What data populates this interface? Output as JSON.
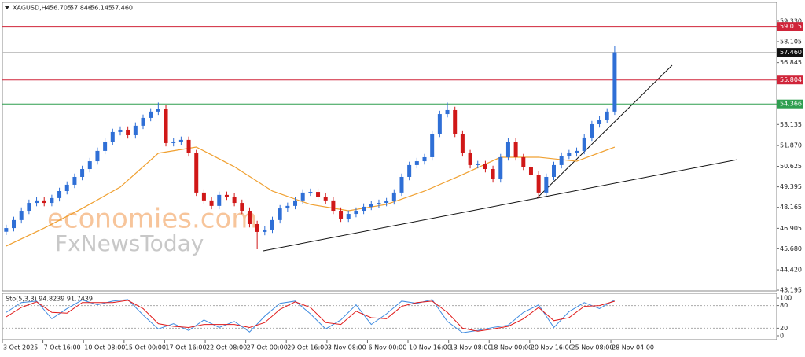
{
  "header": {
    "symbol": "XAGUSD,H4",
    "ohlc": [
      "56.705",
      "57.846",
      "56.145",
      "57.460"
    ]
  },
  "watermark": [
    "economies.com",
    "FxNewsToday"
  ],
  "chart_data": [
    {
      "type": "candlestick",
      "x": [
        0,
        1,
        2,
        3,
        4,
        5,
        6,
        7,
        8,
        9,
        10,
        11,
        12,
        13,
        14,
        15,
        16,
        17,
        18,
        19,
        20,
        21,
        22,
        23,
        24,
        25,
        26,
        27,
        28,
        29,
        30,
        31,
        32,
        33,
        34,
        35,
        36,
        37,
        38,
        39,
        40,
        41,
        42,
        43,
        44,
        45,
        46,
        47,
        48,
        49,
        50,
        51,
        52,
        53,
        54,
        55,
        56,
        57,
        58,
        59,
        60,
        61,
        62,
        63,
        64,
        65,
        66,
        67,
        68,
        69,
        70,
        71,
        72,
        73,
        74,
        75,
        76,
        77,
        78,
        79,
        80
      ],
      "open": [
        46.7,
        46.92,
        47.4,
        47.96,
        48.43,
        48.58,
        48.43,
        48.72,
        49.14,
        49.52,
        49.99,
        50.46,
        50.93,
        51.55,
        52.11,
        52.68,
        52.82,
        52.49,
        53.06,
        53.53,
        53.91,
        54.09,
        52.02,
        52.1,
        52.21,
        51.41,
        49.05,
        48.58,
        48.25,
        48.91,
        48.81,
        48.43,
        47.96,
        47.16,
        46.69,
        46.83,
        47.4,
        48.1,
        48.25,
        48.58,
        49.05,
        49.09,
        48.81,
        48.58,
        47.96,
        47.49,
        47.77,
        47.96,
        48.2,
        48.34,
        48.43,
        48.53,
        49.05,
        49.99,
        50.7,
        50.93,
        51.17,
        52.58,
        53.76,
        54.0,
        52.58,
        51.41,
        50.7,
        50.75,
        50.46,
        49.85,
        51.17,
        52.11,
        51.17,
        50.6,
        50.13,
        49.05,
        49.99,
        50.7,
        51.26,
        51.41,
        51.55,
        52.35,
        53.15,
        53.43,
        53.91
      ],
      "high": [
        47.12,
        47.6,
        48.16,
        48.63,
        48.78,
        48.78,
        48.92,
        49.34,
        49.72,
        50.19,
        50.66,
        51.13,
        51.75,
        52.31,
        52.88,
        53.02,
        53.02,
        53.26,
        53.73,
        54.11,
        54.45,
        54.29,
        52.3,
        52.41,
        52.41,
        51.61,
        49.25,
        48.78,
        49.11,
        49.11,
        49.01,
        48.63,
        48.16,
        47.36,
        47.03,
        47.6,
        48.3,
        48.45,
        48.78,
        49.25,
        49.29,
        49.29,
        49.01,
        48.78,
        48.16,
        47.97,
        48.16,
        48.4,
        48.54,
        48.63,
        48.73,
        49.25,
        50.19,
        50.9,
        51.13,
        51.37,
        52.78,
        53.96,
        54.45,
        54.2,
        52.78,
        51.61,
        50.95,
        50.95,
        50.66,
        51.37,
        52.31,
        52.31,
        51.37,
        50.8,
        50.33,
        50.19,
        50.9,
        51.46,
        51.61,
        51.75,
        52.55,
        53.35,
        53.63,
        54.11,
        57.85
      ],
      "low": [
        46.5,
        46.72,
        47.2,
        47.76,
        48.23,
        48.23,
        48.23,
        48.52,
        48.94,
        49.32,
        49.79,
        50.26,
        50.73,
        51.35,
        51.91,
        52.48,
        52.29,
        52.29,
        52.86,
        53.33,
        53.71,
        51.82,
        51.82,
        51.9,
        51.21,
        48.85,
        48.38,
        48.05,
        48.05,
        48.61,
        48.23,
        47.76,
        46.96,
        45.65,
        46.49,
        46.63,
        47.2,
        47.9,
        48.05,
        48.38,
        48.85,
        48.61,
        48.38,
        47.76,
        47.29,
        47.29,
        47.57,
        47.76,
        48.0,
        48.14,
        48.23,
        48.33,
        48.85,
        49.79,
        50.5,
        50.73,
        50.97,
        52.38,
        53.56,
        52.38,
        51.21,
        50.5,
        50.5,
        50.26,
        49.65,
        49.65,
        50.97,
        50.97,
        50.4,
        49.93,
        48.72,
        48.85,
        49.79,
        50.5,
        51.06,
        51.21,
        51.35,
        52.15,
        52.95,
        53.23,
        53.71
      ],
      "close": [
        46.92,
        47.4,
        47.96,
        48.43,
        48.58,
        48.43,
        48.72,
        49.14,
        49.52,
        49.99,
        50.46,
        50.93,
        51.55,
        52.11,
        52.68,
        52.82,
        52.49,
        53.06,
        53.53,
        53.91,
        54.09,
        52.02,
        52.1,
        52.21,
        51.41,
        49.05,
        48.58,
        48.25,
        48.91,
        48.81,
        48.43,
        47.96,
        47.16,
        46.69,
        46.83,
        47.4,
        48.1,
        48.25,
        48.58,
        49.05,
        49.09,
        48.81,
        48.58,
        47.96,
        47.49,
        47.77,
        47.96,
        48.2,
        48.34,
        48.43,
        48.53,
        49.05,
        49.99,
        50.7,
        50.93,
        51.17,
        52.58,
        53.76,
        54.0,
        52.58,
        51.41,
        50.7,
        50.75,
        50.46,
        49.85,
        51.17,
        52.11,
        51.17,
        50.6,
        50.13,
        49.05,
        49.99,
        50.7,
        51.26,
        51.41,
        51.55,
        52.35,
        53.15,
        53.43,
        53.91,
        57.46
      ],
      "up_color": "#2f6fd6",
      "down_color": "#d01818",
      "xlim": [
        -0.5,
        101.3
      ],
      "ylim": [
        43.15,
        60.46
      ],
      "yticks": [
        {
          "value": 59.33,
          "label": "59.330"
        },
        {
          "value": 58.105,
          "label": "58.105"
        },
        {
          "value": 56.845,
          "label": "56.845"
        },
        {
          "value": 53.135,
          "label": "53.135"
        },
        {
          "value": 51.87,
          "label": "51.870"
        },
        {
          "value": 50.625,
          "label": "50.625"
        },
        {
          "value": 49.395,
          "label": "49.395"
        },
        {
          "value": 48.165,
          "label": "48.165"
        },
        {
          "value": 46.905,
          "label": "46.905"
        },
        {
          "value": 45.68,
          "label": "45.680"
        },
        {
          "value": 44.42,
          "label": "44.420"
        },
        {
          "value": 43.195,
          "label": "43.195"
        }
      ],
      "xticks": [
        {
          "value": -0.5,
          "label": "3 Oct 2025"
        },
        {
          "value": 4.83,
          "label": "7 Oct 16:00"
        },
        {
          "value": 10.17,
          "label": "10 Oct 08:00"
        },
        {
          "value": 15.5,
          "label": "15 Oct 00:00"
        },
        {
          "value": 20.83,
          "label": "17 Oct 16:00"
        },
        {
          "value": 26.17,
          "label": "22 Oct 08:00"
        },
        {
          "value": 31.5,
          "label": "27 Oct 00:00"
        },
        {
          "value": 36.83,
          "label": "29 Oct 16:00"
        },
        {
          "value": 42.17,
          "label": "3 Nov 08:00"
        },
        {
          "value": 47.5,
          "label": "6 Nov 00:00"
        },
        {
          "value": 52.83,
          "label": "10 Nov 16:00"
        },
        {
          "value": 58.17,
          "label": "13 Nov 08:00"
        },
        {
          "value": 63.5,
          "label": "18 Nov 00:00"
        },
        {
          "value": 68.83,
          "label": "20 Nov 16:00"
        },
        {
          "value": 74.17,
          "label": "25 Nov 08:00"
        },
        {
          "value": 79.5,
          "label": "28 Nov 04:00"
        }
      ],
      "levels": [
        {
          "value": 59.015,
          "label": "59.015",
          "color": "#d0253a"
        },
        {
          "value": 57.46,
          "label": "57.460",
          "color": "#111111"
        },
        {
          "value": 55.804,
          "label": "55.804",
          "color": "#d0253a"
        },
        {
          "value": 54.366,
          "label": "54.366",
          "color": "#2e9e4f"
        }
      ],
      "moving_average": {
        "color": "#f0a030",
        "x": [
          0,
          5,
          10,
          15,
          20,
          25,
          30,
          35,
          40,
          45,
          50,
          55,
          60,
          65,
          70,
          75,
          80
        ],
        "values": [
          45.84,
          46.92,
          48.1,
          49.38,
          51.41,
          51.78,
          50.6,
          49.14,
          48.34,
          47.96,
          48.34,
          49.14,
          50.13,
          51.17,
          51.17,
          50.93,
          51.78
        ]
      }
    },
    {
      "type": "line",
      "title": "Sto(5,3,3) 94.8239 91.7439",
      "x": [
        0,
        2,
        4,
        6,
        8,
        10,
        12,
        14,
        16,
        18,
        20,
        22,
        24,
        26,
        28,
        30,
        32,
        34,
        36,
        38,
        40,
        42,
        44,
        46,
        48,
        50,
        52,
        54,
        56,
        58,
        60,
        62,
        64,
        66,
        68,
        70,
        72,
        74,
        76,
        78,
        80
      ],
      "series": [
        {
          "color": "#3f8be0",
          "values": [
            62,
            88,
            92,
            45,
            72,
            95,
            82,
            92,
            96,
            55,
            18,
            32,
            14,
            42,
            22,
            38,
            10,
            52,
            86,
            92,
            58,
            18,
            42,
            82,
            30,
            58,
            92,
            86,
            96,
            38,
            8,
            14,
            22,
            28,
            62,
            82,
            22,
            64,
            88,
            72,
            94.8239
          ]
        },
        {
          "color": "#e01a1a",
          "values": [
            50,
            75,
            90,
            62,
            60,
            88,
            88,
            88,
            94,
            72,
            32,
            25,
            22,
            30,
            30,
            30,
            22,
            35,
            70,
            90,
            75,
            35,
            30,
            65,
            48,
            45,
            78,
            88,
            92,
            62,
            20,
            12,
            18,
            25,
            45,
            75,
            40,
            48,
            78,
            80,
            91.7439
          ]
        }
      ],
      "ylim": [
        0,
        100
      ],
      "yticks": [
        100,
        80,
        20,
        0
      ],
      "levels": [
        80,
        20
      ]
    }
  ]
}
